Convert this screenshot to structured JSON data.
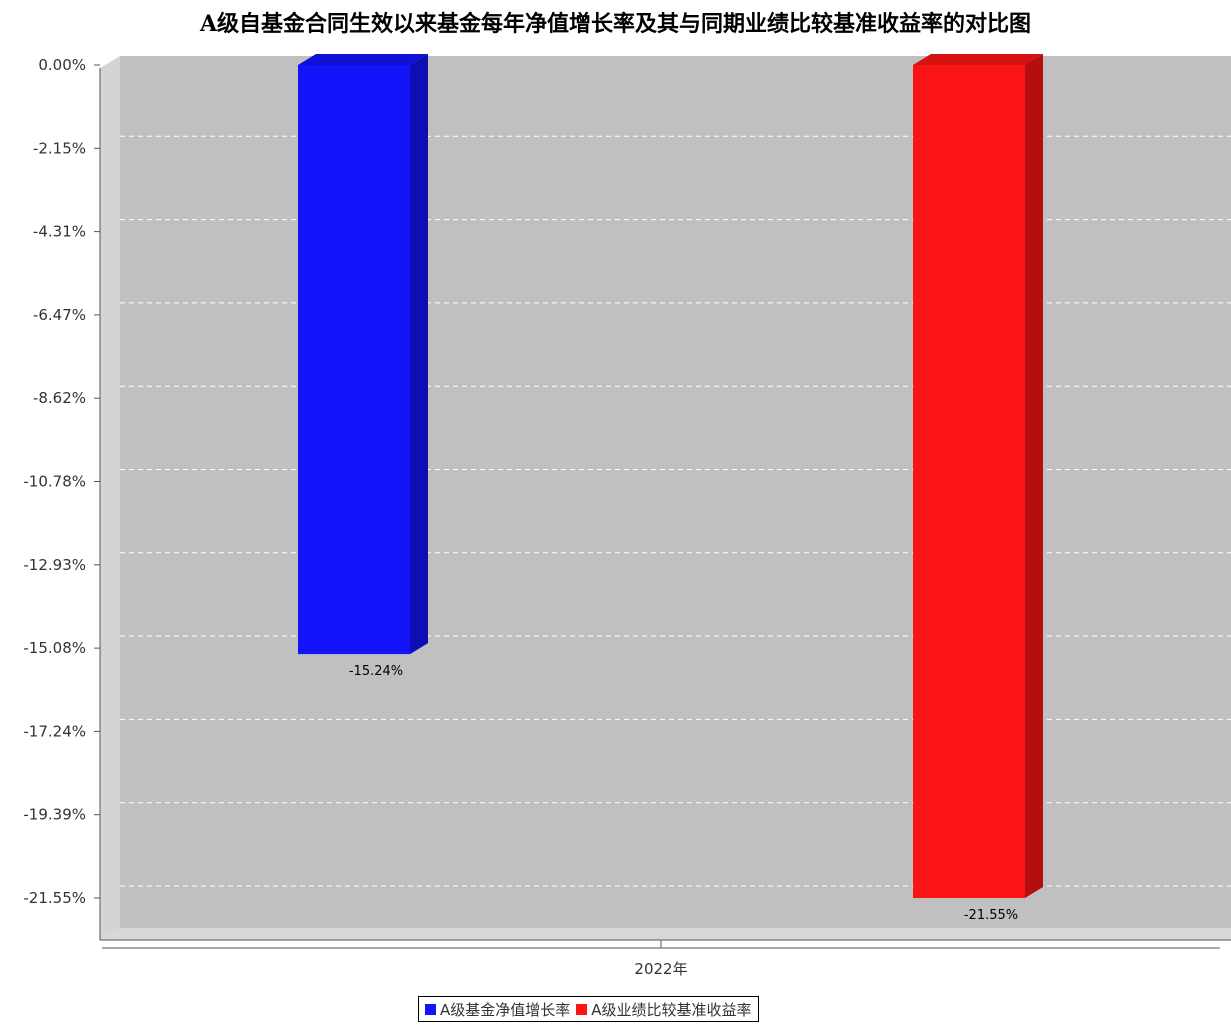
{
  "chart_data": {
    "type": "bar",
    "title": "A级自基金合同生效以来基金每年净值增长率及其与同期业绩比较基准收益率的对比图",
    "categories": [
      "2022年"
    ],
    "series": [
      {
        "name": "A级基金净值增长率",
        "values": [
          -15.24
        ],
        "label": "-15.24%",
        "color": "#1414fa"
      },
      {
        "name": "A级业绩比较基准收益率",
        "values": [
          -21.55
        ],
        "label": "-21.55%",
        "color": "#fa1414"
      }
    ],
    "yticks": [
      "0.00%",
      "-2.15%",
      "-4.31%",
      "-6.47%",
      "-8.62%",
      "-10.78%",
      "-12.93%",
      "-15.08%",
      "-17.24%",
      "-19.39%",
      "-21.55%"
    ],
    "ylim": [
      -21.55,
      0
    ],
    "grid": true,
    "legend_position": "bottom"
  }
}
